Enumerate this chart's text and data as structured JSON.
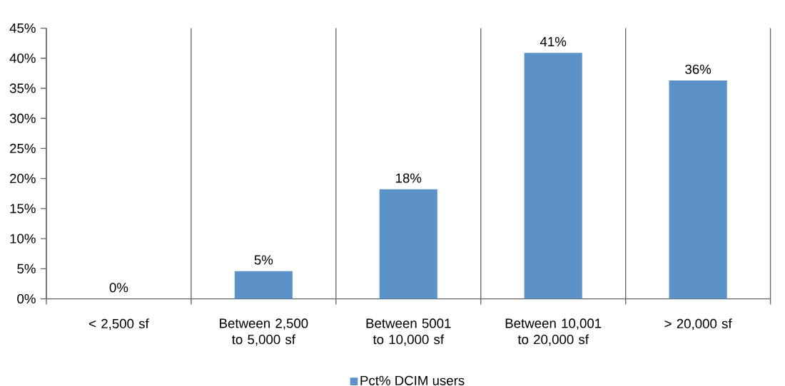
{
  "chart_data": {
    "type": "bar",
    "categories": [
      "<  2,500 sf",
      "Between 2,500 to 5,000 sf",
      "Between 5001 to 10,000 sf",
      "Between 10,001 to 20,000 sf",
      "> 20,000 sf"
    ],
    "series": [
      {
        "name": "Pct% DCIM users",
        "color": "#5b93c8",
        "values": [
          0,
          4.6,
          18.2,
          40.9,
          36.3
        ],
        "value_labels": [
          "0%",
          "5%",
          "18%",
          "41%",
          "36%"
        ]
      }
    ],
    "ylim": [
      0,
      45
    ],
    "yticks": [
      {
        "value": 0,
        "label": "0%"
      },
      {
        "value": 5,
        "label": "5%"
      },
      {
        "value": 10,
        "label": "10%"
      },
      {
        "value": 15,
        "label": "15%"
      },
      {
        "value": 20,
        "label": "20%"
      },
      {
        "value": 25,
        "label": "25%"
      },
      {
        "value": 30,
        "label": "30%"
      },
      {
        "value": 35,
        "label": "35%"
      },
      {
        "value": 40,
        "label": "40%"
      },
      {
        "value": 45,
        "label": "45%"
      }
    ],
    "grid": "x",
    "legend": "bottom"
  }
}
